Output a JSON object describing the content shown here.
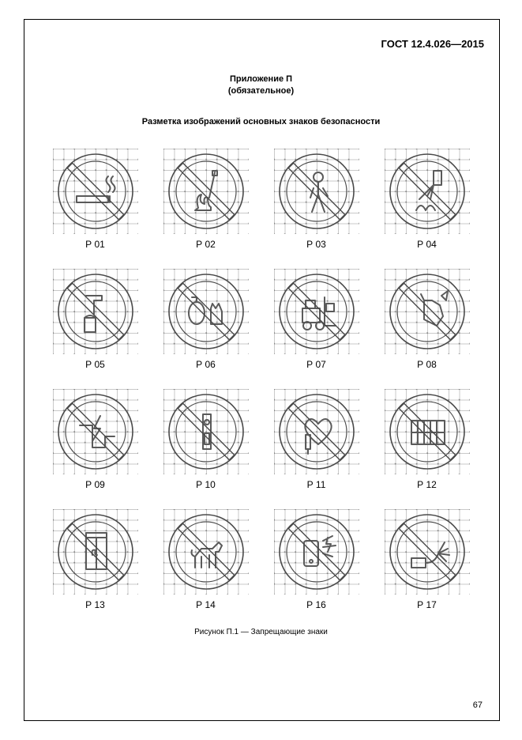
{
  "doc_number": "ГОСТ 12.4.026—2015",
  "appendix_label": "Приложение П",
  "appendix_sub": "(обязательное)",
  "section_title": "Разметка изображений основных знаков безопасности",
  "caption": "Рисунок П.1 — Запрещающие знаки",
  "page_number": "67",
  "sign_style": {
    "grid_cells": 8,
    "circle_stroke": "#4a4a4a",
    "grid_color_rgba": "rgba(100,100,100,0.35)",
    "dot_color_rgba": "rgba(80,80,80,0.55)",
    "circle_outer_r": 47,
    "circle_ring_w": 9,
    "slash_w": 9
  },
  "signs": [
    {
      "code": "Р 01",
      "icon": "smoking"
    },
    {
      "code": "Р 02",
      "icon": "open-flame"
    },
    {
      "code": "Р 03",
      "icon": "pedestrian"
    },
    {
      "code": "Р 04",
      "icon": "water-extinguish"
    },
    {
      "code": "Р 05",
      "icon": "non-potable"
    },
    {
      "code": "Р 06",
      "icon": "mask-hand"
    },
    {
      "code": "Р 07",
      "icon": "forklift"
    },
    {
      "code": "Р 08",
      "icon": "touch"
    },
    {
      "code": "Р 09",
      "icon": "high-voltage"
    },
    {
      "code": "Р 10",
      "icon": "switch"
    },
    {
      "code": "Р 11",
      "icon": "pacemaker"
    },
    {
      "code": "Р 12",
      "icon": "obstruct"
    },
    {
      "code": "Р 13",
      "icon": "elevator-fire"
    },
    {
      "code": "Р 14",
      "icon": "dog"
    },
    {
      "code": "Р 16",
      "icon": "phone-spark"
    },
    {
      "code": "Р 17",
      "icon": "water-spray"
    }
  ]
}
